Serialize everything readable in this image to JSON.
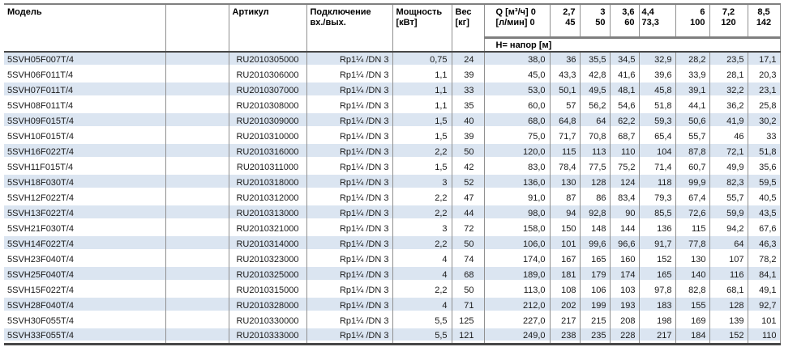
{
  "colors": {
    "stripe": "#dbe5f1",
    "grid": "#909090",
    "rule_light": "#7f7f7f",
    "rule_dark": "#474747",
    "text": "#1a1a1a"
  },
  "table": {
    "headers": {
      "model": "Модель",
      "article": "Артикул",
      "connection_line1": "Подключение",
      "connection_line2": "вх./вых.",
      "power_line1": "Мощность",
      "power_line2": "[кВт]",
      "weight_line1": "Вес",
      "weight_line2": "[кг]",
      "q_line1": "Q [м³/ч] 0",
      "q_line2": "[л/мин] 0",
      "napor": "Н= напор [м]",
      "flow_columns": [
        {
          "m3h": "2,7",
          "lmin": "45",
          "align": "right"
        },
        {
          "m3h": "3",
          "lmin": "50",
          "align": "right"
        },
        {
          "m3h": "3,6",
          "lmin": "60",
          "align": "right"
        },
        {
          "m3h": "4,4",
          "lmin": "73,3",
          "align": "left"
        },
        {
          "m3h": "6",
          "lmin": "100",
          "align": "right"
        },
        {
          "m3h": "7,2",
          "lmin": "120",
          "align": "center"
        },
        {
          "m3h": "8,5",
          "lmin": "142",
          "align": "center"
        }
      ]
    },
    "rows": [
      {
        "model": "5SVH05F007T/4",
        "article": "RU2010305000",
        "connection": "Rp1¼ /DN 3",
        "power": "0,75",
        "weight": "24",
        "h": [
          "38,0",
          "36",
          "35,5",
          "34,5",
          "32,9",
          "28,2",
          "23,5",
          "17,1"
        ]
      },
      {
        "model": "5SVH06F011T/4",
        "article": "RU2010306000",
        "connection": "Rp1¼ /DN 3",
        "power": "1,1",
        "weight": "39",
        "h": [
          "45,0",
          "43,3",
          "42,8",
          "41,6",
          "39,6",
          "33,9",
          "28,1",
          "20,3"
        ]
      },
      {
        "model": "5SVH07F011T/4",
        "article": "RU2010307000",
        "connection": "Rp1¼ /DN 3",
        "power": "1,1",
        "weight": "33",
        "h": [
          "53,0",
          "50,1",
          "49,5",
          "48,1",
          "45,8",
          "39,1",
          "32,2",
          "23,1"
        ]
      },
      {
        "model": "5SVH08F011T/4",
        "article": "RU2010308000",
        "connection": "Rp1¼ /DN 3",
        "power": "1,1",
        "weight": "35",
        "h": [
          "60,0",
          "57",
          "56,2",
          "54,6",
          "51,8",
          "44,1",
          "36,2",
          "25,8"
        ]
      },
      {
        "model": "5SVH09F015T/4",
        "article": "RU2010309000",
        "connection": "Rp1¼ /DN 3",
        "power": "1,5",
        "weight": "40",
        "h": [
          "68,0",
          "64,8",
          "64",
          "62,2",
          "59,3",
          "50,6",
          "41,9",
          "30,2"
        ]
      },
      {
        "model": "5SVH10F015T/4",
        "article": "RU2010310000",
        "connection": "Rp1¼ /DN 3",
        "power": "1,5",
        "weight": "39",
        "h": [
          "75,0",
          "71,7",
          "70,8",
          "68,7",
          "65,4",
          "55,7",
          "46",
          "33"
        ]
      },
      {
        "model": "5SVH16F022T/4",
        "article": "RU2010316000",
        "connection": "Rp1¼ /DN 3",
        "power": "2,2",
        "weight": "50",
        "h": [
          "120,0",
          "115",
          "113",
          "110",
          "104",
          "87,8",
          "72,1",
          "51,8"
        ]
      },
      {
        "model": "5SVH11F015T/4",
        "article": "RU2010311000",
        "connection": "Rp1¼ /DN 3",
        "power": "1,5",
        "weight": "42",
        "h": [
          "83,0",
          "78,4",
          "77,5",
          "75,2",
          "71,4",
          "60,7",
          "49,9",
          "35,6"
        ]
      },
      {
        "model": "5SVH18F030T/4",
        "article": "RU2010318000",
        "connection": "Rp1¼ /DN 3",
        "power": "3",
        "weight": "52",
        "h": [
          "136,0",
          "130",
          "128",
          "124",
          "118",
          "99,9",
          "82,3",
          "59,5"
        ]
      },
      {
        "model": "5SVH12F022T/4",
        "article": "RU2010312000",
        "connection": "Rp1¼ /DN 3",
        "power": "2,2",
        "weight": "47",
        "h": [
          "91,0",
          "87",
          "86",
          "83,4",
          "79,3",
          "67,4",
          "55,7",
          "40,5"
        ]
      },
      {
        "model": "5SVH13F022T/4",
        "article": "RU2010313000",
        "connection": "Rp1¼ /DN 3",
        "power": "2,2",
        "weight": "44",
        "h": [
          "98,0",
          "94",
          "92,8",
          "90",
          "85,5",
          "72,6",
          "59,9",
          "43,5"
        ]
      },
      {
        "model": "5SVH21F030T/4",
        "article": "RU2010321000",
        "connection": "Rp1¼ /DN 3",
        "power": "3",
        "weight": "72",
        "h": [
          "158,0",
          "150",
          "148",
          "144",
          "136",
          "115",
          "94,2",
          "67,6"
        ]
      },
      {
        "model": "5SVH14F022T/4",
        "article": "RU2010314000",
        "connection": "Rp1¼ /DN 3",
        "power": "2,2",
        "weight": "50",
        "h": [
          "106,0",
          "101",
          "99,6",
          "96,6",
          "91,7",
          "77,8",
          "64",
          "46,3"
        ]
      },
      {
        "model": "5SVH23F040T/4",
        "article": "RU2010323000",
        "connection": "Rp1¼ /DN 3",
        "power": "4",
        "weight": "74",
        "h": [
          "174,0",
          "167",
          "165",
          "160",
          "152",
          "130",
          "107",
          "78,2"
        ]
      },
      {
        "model": "5SVH25F040T/4",
        "article": "RU2010325000",
        "connection": "Rp1¼ /DN 3",
        "power": "4",
        "weight": "68",
        "h": [
          "189,0",
          "181",
          "179",
          "174",
          "165",
          "140",
          "116",
          "84,1"
        ]
      },
      {
        "model": "5SVH15F022T/4",
        "article": "RU2010315000",
        "connection": "Rp1¼ /DN 3",
        "power": "2,2",
        "weight": "50",
        "h": [
          "113,0",
          "108",
          "106",
          "103",
          "97,8",
          "82,8",
          "68,1",
          "49,1"
        ]
      },
      {
        "model": "5SVH28F040T/4",
        "article": "RU2010328000",
        "connection": "Rp1¼ /DN 3",
        "power": "4",
        "weight": "71",
        "h": [
          "212,0",
          "202",
          "199",
          "193",
          "183",
          "155",
          "128",
          "92,7"
        ]
      },
      {
        "model": "5SVH30F055T/4",
        "article": "RU2010330000",
        "connection": "Rp1¼ /DN 3",
        "power": "5,5",
        "weight": "125",
        "h": [
          "227,0",
          "217",
          "215",
          "208",
          "198",
          "169",
          "139",
          "101"
        ]
      },
      {
        "model": "5SVH33F055T/4",
        "article": "RU2010333000",
        "connection": "Rp1¼ /DN 3",
        "power": "5,5",
        "weight": "121",
        "h": [
          "249,0",
          "238",
          "235",
          "228",
          "217",
          "184",
          "152",
          "110"
        ]
      }
    ]
  }
}
